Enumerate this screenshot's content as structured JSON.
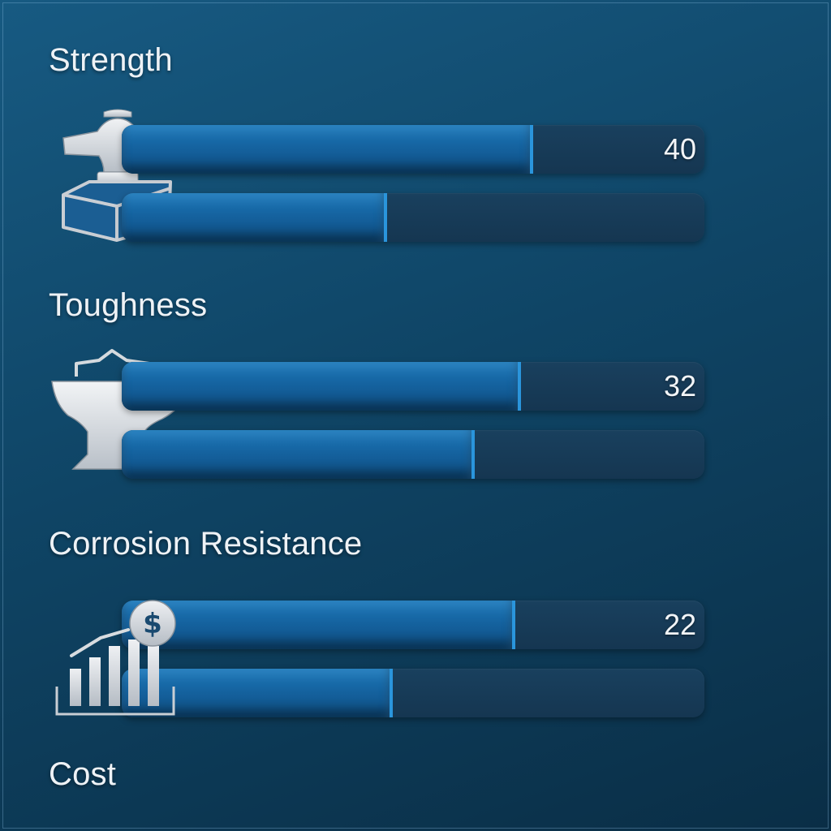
{
  "colors": {
    "background": "#0f4566",
    "fill": "#1563a0",
    "track": "#163a56",
    "accent": "#2a95dc",
    "text": "#eef2f6",
    "icon": "#c9ced4"
  },
  "metrics": [
    {
      "label": "Strength",
      "icon": "anvil-on-block-icon",
      "value": "40",
      "bars": [
        0.7,
        0.45
      ]
    },
    {
      "label": "Toughness",
      "icon": "anvil-icon",
      "value": "32",
      "bars": [
        0.68,
        0.6
      ]
    },
    {
      "label": "Corrosion Resistance",
      "icon": "cost-chart-dollar-icon",
      "value": "22",
      "bars": [
        0.67,
        0.46
      ]
    },
    {
      "label": "Cost"
    }
  ]
}
